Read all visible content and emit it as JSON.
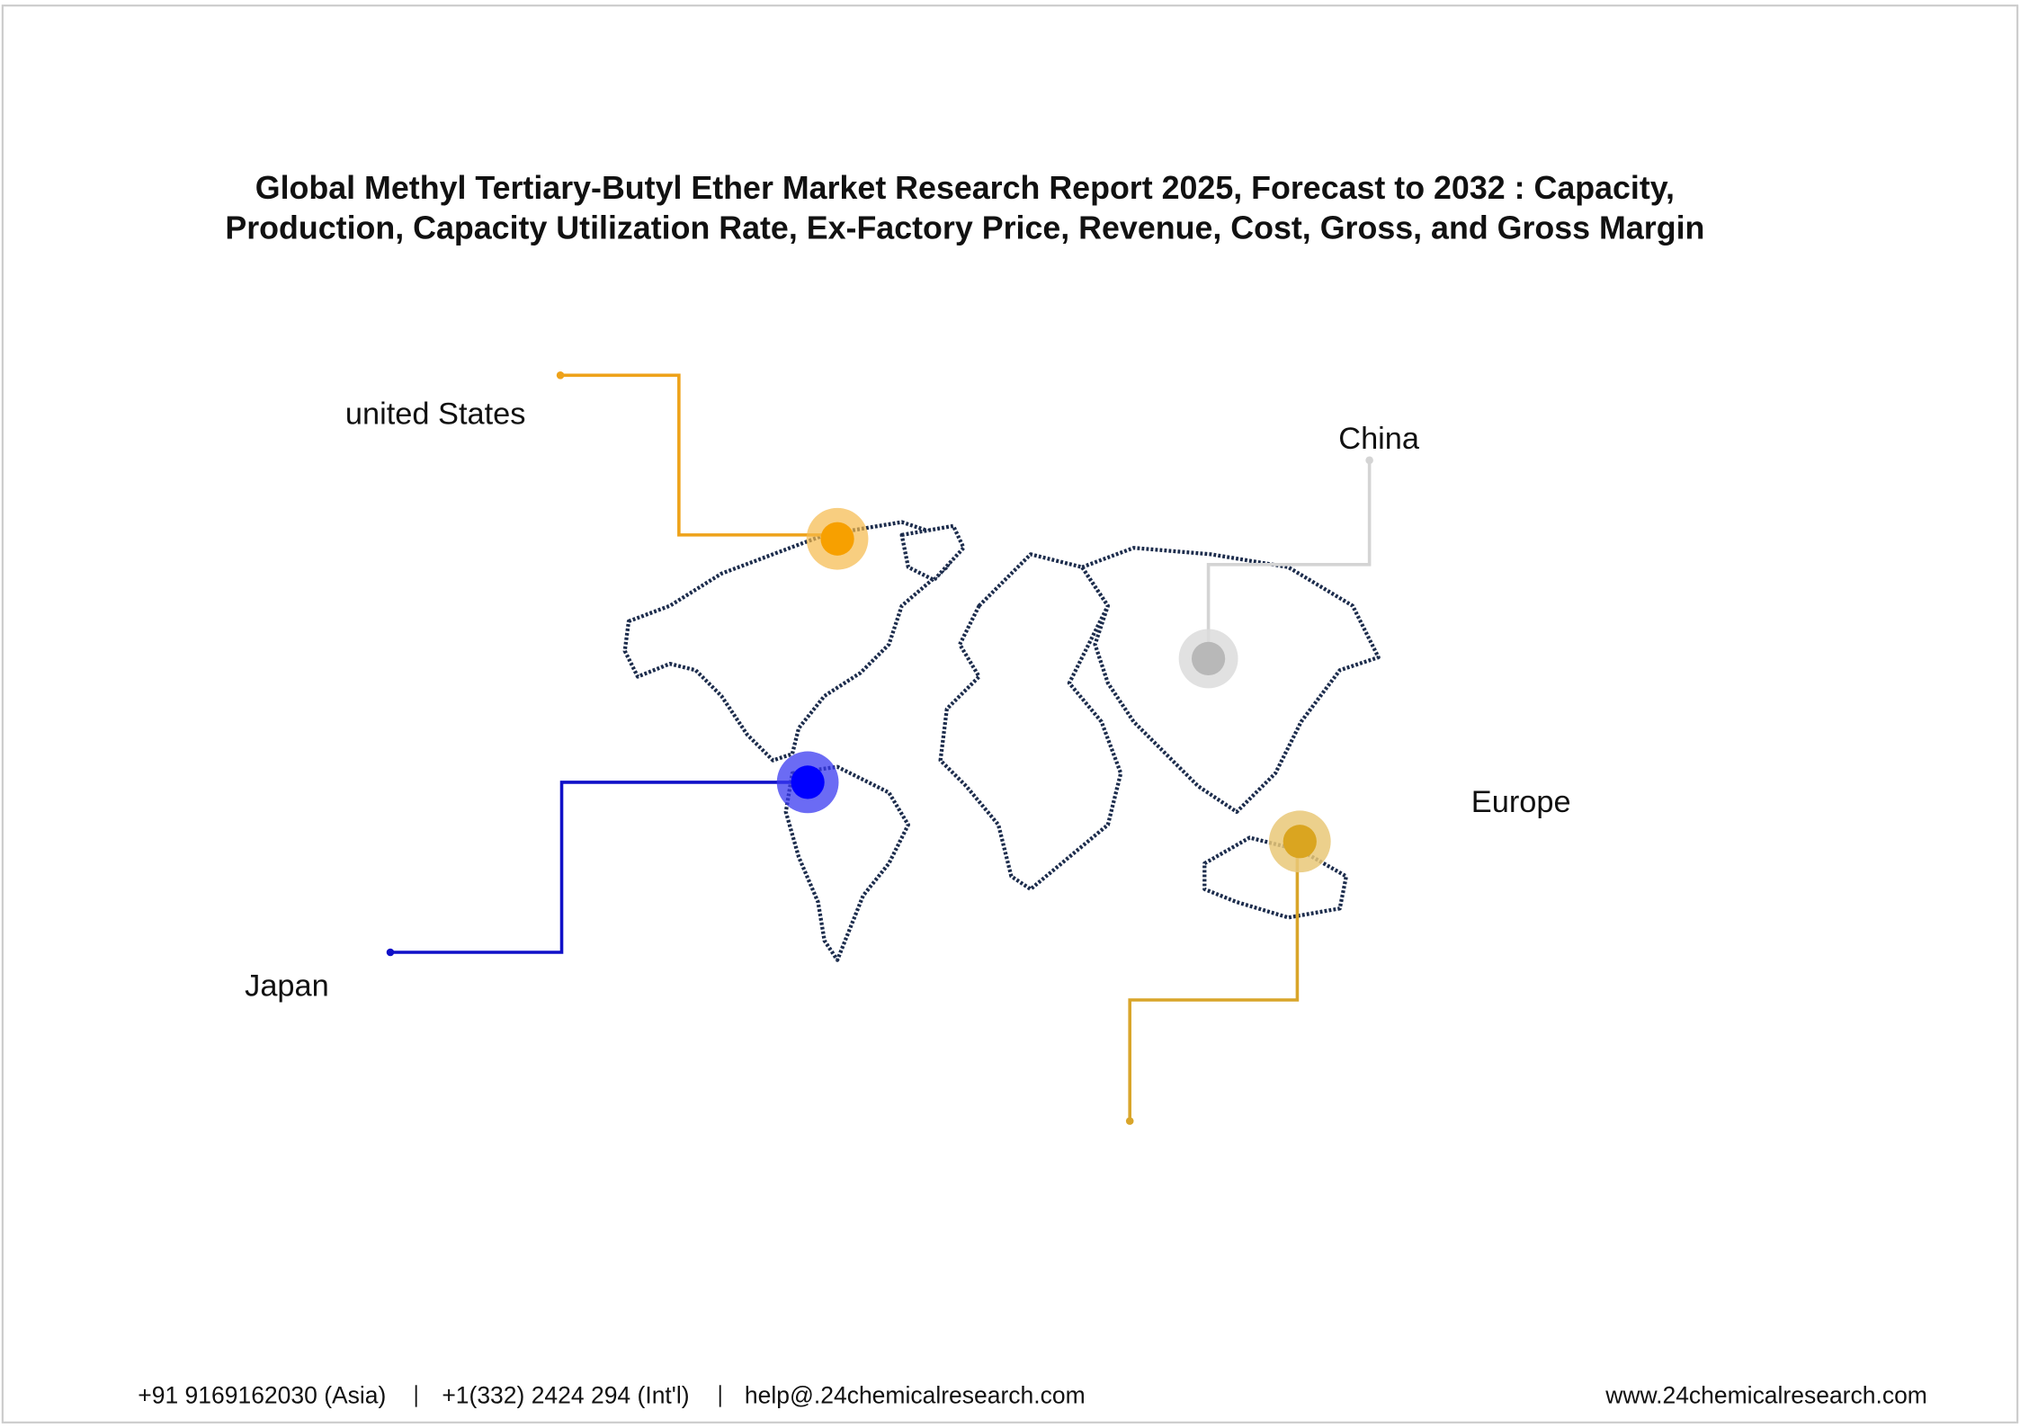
{
  "header": {
    "title_lines": [
      "Global Methyl Tertiary-Butyl Ether Market Research Report 2025, Forecast to 2032 : Capacity,",
      "Production, Capacity Utilization Rate, Ex-Factory Price, Revenue, Cost, Gross, and Gross Margin"
    ]
  },
  "regions": [
    {
      "label": "united States"
    },
    {
      "label": "China"
    },
    {
      "label": "Japan"
    },
    {
      "label": "Europe"
    }
  ],
  "footer": {
    "contacts": [
      "+91 9169162030 (Asia)",
      "+1(332) 2424 294 (Int'l)",
      "help@.24chemicalresearch.com"
    ],
    "website": "www.24chemicalresearch.com"
  }
}
